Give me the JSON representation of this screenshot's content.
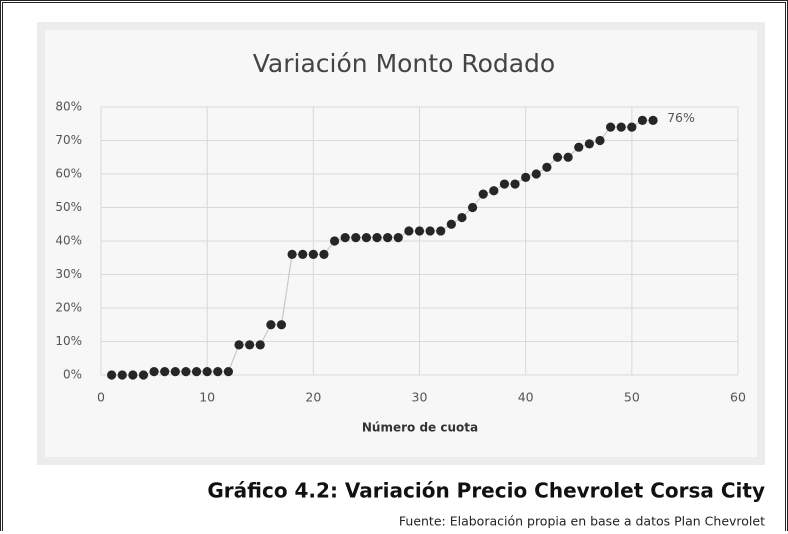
{
  "chart_data": {
    "type": "scatter",
    "title": "Variación Monto Rodado",
    "x_label": "Número de cuota",
    "x": [
      1,
      2,
      3,
      4,
      5,
      6,
      7,
      8,
      9,
      10,
      11,
      12,
      13,
      14,
      15,
      16,
      17,
      18,
      19,
      20,
      21,
      22,
      23,
      24,
      25,
      26,
      27,
      28,
      29,
      30,
      31,
      32,
      33,
      34,
      35,
      36,
      37,
      38,
      39,
      40,
      41,
      42,
      43,
      44,
      45,
      46,
      47,
      48,
      49,
      50,
      51,
      52
    ],
    "values": [
      0,
      0,
      0,
      0,
      1,
      1,
      1,
      1,
      1,
      1,
      1,
      1,
      9,
      9,
      9,
      15,
      15,
      36,
      36,
      36,
      36,
      40,
      41,
      41,
      41,
      41,
      41,
      41,
      43,
      43,
      43,
      43,
      45,
      47,
      50,
      54,
      55,
      57,
      57,
      59,
      60,
      62,
      65,
      65,
      68,
      69,
      70,
      74,
      74,
      74,
      76,
      76
    ],
    "value_labels": [
      null,
      null,
      null,
      null,
      null,
      null,
      null,
      null,
      null,
      null,
      null,
      null,
      null,
      null,
      null,
      null,
      null,
      null,
      null,
      null,
      null,
      null,
      null,
      null,
      null,
      null,
      null,
      null,
      null,
      null,
      null,
      null,
      null,
      null,
      null,
      null,
      null,
      null,
      null,
      null,
      null,
      null,
      null,
      null,
      null,
      null,
      null,
      null,
      null,
      null,
      null,
      "76%"
    ],
    "color": "#262626",
    "line_color": "#c8c8c8",
    "xlim": [
      0,
      60
    ],
    "xticks": [
      0,
      10,
      20,
      30,
      40,
      50,
      60
    ],
    "ylim": [
      0,
      80
    ],
    "yticks": [
      {
        "value": 0,
        "label": "0%"
      },
      {
        "value": 10,
        "label": "10%"
      },
      {
        "value": 20,
        "label": "20%"
      },
      {
        "value": 30,
        "label": "30%"
      },
      {
        "value": 40,
        "label": "40%"
      },
      {
        "value": 50,
        "label": "50%"
      },
      {
        "value": 60,
        "label": "60%"
      },
      {
        "value": 70,
        "label": "70%"
      },
      {
        "value": 80,
        "label": "80%"
      }
    ],
    "grid": true
  },
  "caption": "Gráfico 4.2: Variación Precio Chevrolet Corsa City",
  "source": "Fuente: Elaboración propia en base a datos Plan Chevrolet"
}
